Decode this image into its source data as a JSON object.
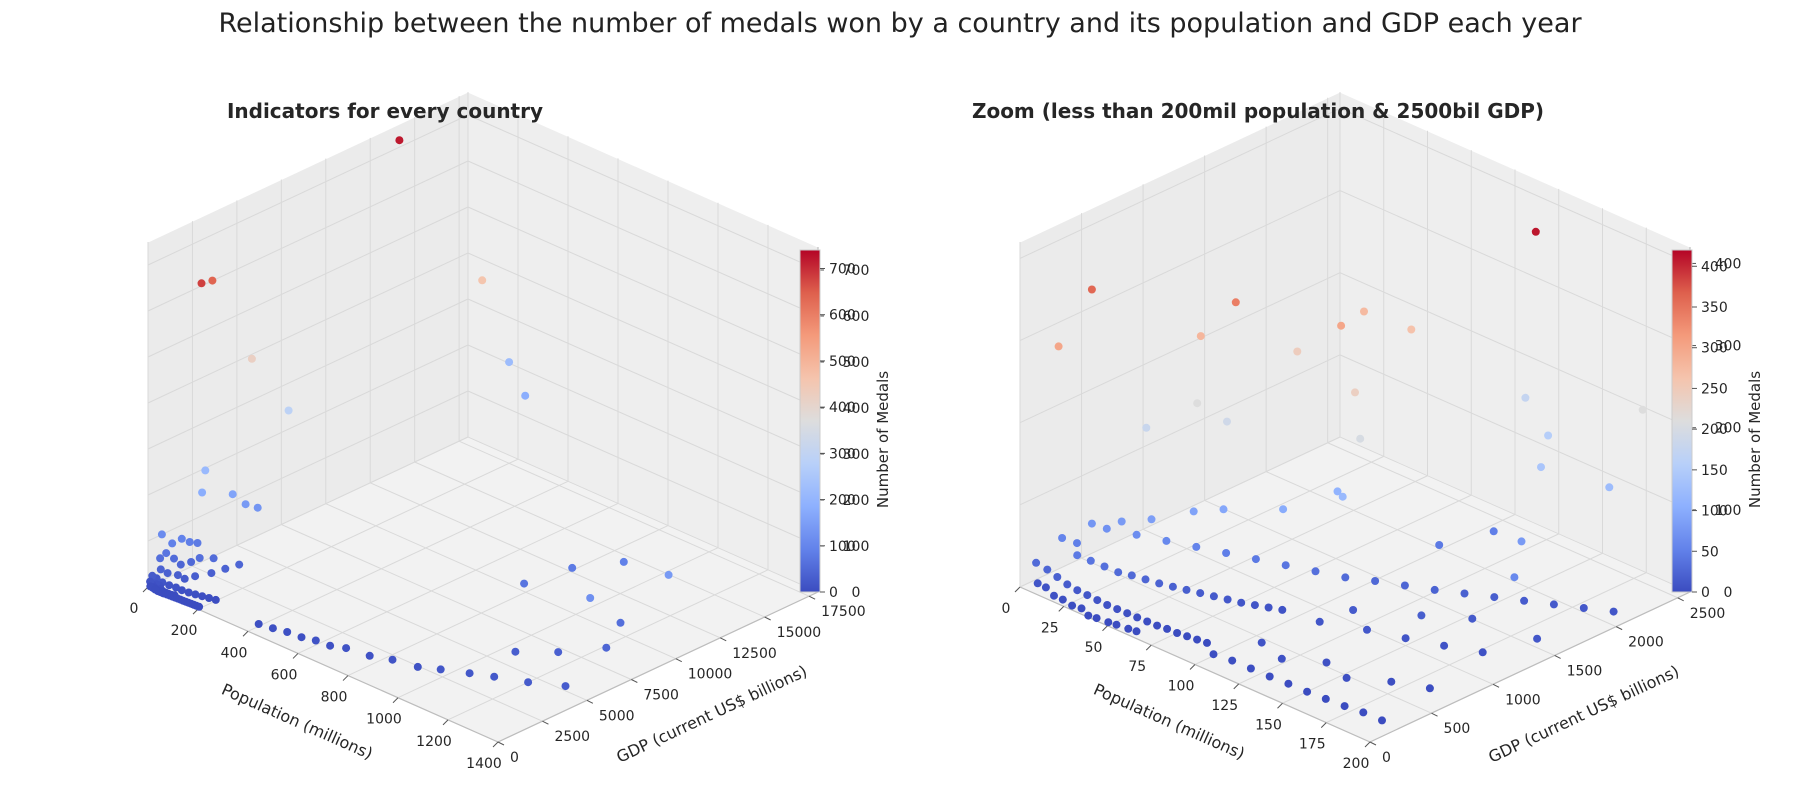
{
  "figure": {
    "suptitle": "Relationship between the number of medals won by a country and its population and GDP each year"
  },
  "chart_data": [
    {
      "type": "scatter",
      "projection": "3d",
      "title": "Indicators for every country",
      "xlabel": "Population (millions)",
      "ylabel": "GDP (current US$ billions)",
      "zlabel": "Number of Medals",
      "xlim": [
        0,
        1400
      ],
      "ylim": [
        0,
        18000
      ],
      "zlim": [
        0,
        750
      ],
      "xticks": [
        0,
        200,
        400,
        600,
        800,
        1000,
        1200,
        1400
      ],
      "yticks": [
        0,
        2500,
        5000,
        7500,
        10000,
        12500,
        15000,
        17500
      ],
      "zticks": [
        0,
        100,
        200,
        300,
        400,
        500,
        600,
        700
      ],
      "grid": true,
      "colormap": "coolwarm",
      "colorbar": {
        "min": 0,
        "max": 740,
        "ticks": [
          0,
          100,
          200,
          300,
          400,
          500,
          600,
          700
        ]
      },
      "points": [
        [
          10,
          14000,
          720
        ],
        [
          150,
          900,
          680
        ],
        [
          80,
          2500,
          640
        ],
        [
          270,
          15000,
          460
        ],
        [
          60,
          5000,
          420
        ],
        [
          100,
          6500,
          290
        ],
        [
          200,
          17500,
          220
        ],
        [
          30,
          2800,
          210
        ],
        [
          60,
          2200,
          180
        ],
        [
          90,
          3500,
          160
        ],
        [
          120,
          3800,
          140
        ],
        [
          140,
          4200,
          130
        ],
        [
          300,
          17000,
          180
        ],
        [
          1300,
          11000,
          140
        ],
        [
          1200,
          8000,
          120
        ],
        [
          20,
          500,
          110
        ],
        [
          40,
          800,
          90
        ],
        [
          50,
          1200,
          95
        ],
        [
          60,
          1500,
          85
        ],
        [
          30,
          600,
          70
        ],
        [
          70,
          1800,
          80
        ],
        [
          20,
          400,
          60
        ],
        [
          40,
          900,
          55
        ],
        [
          60,
          1000,
          45
        ],
        [
          80,
          1300,
          50
        ],
        [
          100,
          1500,
          60
        ],
        [
          120,
          2000,
          55
        ],
        [
          30,
          300,
          40
        ],
        [
          50,
          400,
          35
        ],
        [
          70,
          700,
          30
        ],
        [
          90,
          800,
          25
        ],
        [
          110,
          1100,
          30
        ],
        [
          140,
          1600,
          35
        ],
        [
          160,
          2100,
          40
        ],
        [
          180,
          2600,
          45
        ],
        [
          20,
          200,
          20
        ],
        [
          40,
          250,
          15
        ],
        [
          60,
          350,
          12
        ],
        [
          80,
          450,
          10
        ],
        [
          100,
          500,
          8
        ],
        [
          120,
          600,
          6
        ],
        [
          140,
          700,
          5
        ],
        [
          160,
          800,
          4
        ],
        [
          180,
          900,
          3
        ],
        [
          200,
          1000,
          2
        ],
        [
          10,
          100,
          25
        ],
        [
          15,
          150,
          18
        ],
        [
          25,
          120,
          10
        ],
        [
          35,
          180,
          8
        ],
        [
          45,
          90,
          5
        ],
        [
          55,
          60,
          3
        ],
        [
          65,
          80,
          2
        ],
        [
          75,
          110,
          1
        ],
        [
          85,
          130,
          1
        ],
        [
          95,
          160,
          2
        ],
        [
          5,
          50,
          12
        ],
        [
          12,
          70,
          6
        ],
        [
          22,
          40,
          4
        ],
        [
          32,
          30,
          2
        ],
        [
          42,
          20,
          1
        ],
        [
          52,
          35,
          1
        ],
        [
          62,
          45,
          0
        ],
        [
          72,
          55,
          0
        ],
        [
          82,
          65,
          0
        ],
        [
          92,
          75,
          0
        ],
        [
          102,
          85,
          0
        ],
        [
          112,
          95,
          0
        ],
        [
          122,
          105,
          0
        ],
        [
          132,
          115,
          0
        ],
        [
          142,
          125,
          0
        ],
        [
          152,
          135,
          0
        ],
        [
          162,
          145,
          0
        ],
        [
          172,
          155,
          0
        ],
        [
          182,
          165,
          0
        ],
        [
          192,
          175,
          0
        ],
        [
          8,
          15,
          3
        ],
        [
          18,
          25,
          2
        ],
        [
          28,
          12,
          1
        ],
        [
          38,
          18,
          0
        ],
        [
          48,
          22,
          0
        ],
        [
          58,
          28,
          0
        ],
        [
          400,
          600,
          5
        ],
        [
          450,
          700,
          6
        ],
        [
          500,
          800,
          8
        ],
        [
          550,
          900,
          7
        ],
        [
          600,
          1000,
          10
        ],
        [
          650,
          1100,
          9
        ],
        [
          700,
          1300,
          12
        ],
        [
          780,
          1500,
          11
        ],
        [
          850,
          1800,
          14
        ],
        [
          930,
          2100,
          12
        ],
        [
          1000,
          2400,
          18
        ],
        [
          1080,
          2900,
          20
        ],
        [
          1150,
          3300,
          22
        ],
        [
          1250,
          3800,
          25
        ],
        [
          1350,
          4500,
          28
        ],
        [
          1100,
          5200,
          30
        ],
        [
          1200,
          6200,
          35
        ],
        [
          1300,
          7500,
          45
        ],
        [
          1250,
          9000,
          60
        ],
        [
          900,
          8500,
          70
        ],
        [
          950,
          10500,
          80
        ],
        [
          1050,
          12000,
          90
        ]
      ]
    },
    {
      "type": "scatter",
      "projection": "3d",
      "title": "Zoom (less than 200mil population & 2500bil GDP)",
      "xlabel": "Population (millions)",
      "ylabel": "GDP (current US$ billions)",
      "zlabel": "Number of Medals",
      "xlim": [
        0,
        200
      ],
      "ylim": [
        0,
        2600
      ],
      "zlim": [
        0,
        420
      ],
      "xticks": [
        0,
        25,
        50,
        75,
        100,
        125,
        150,
        175,
        200
      ],
      "yticks": [
        0,
        500,
        1000,
        1500,
        2000,
        2500
      ],
      "zticks": [
        0,
        100,
        200,
        300,
        400
      ],
      "grid": true,
      "colormap": "coolwarm",
      "colorbar": {
        "min": 0,
        "max": 420,
        "ticks": [
          0,
          50,
          100,
          150,
          200,
          250,
          300,
          350,
          400
        ]
      },
      "points": [
        [
          140,
          2200,
          410
        ],
        [
          20,
          300,
          360
        ],
        [
          60,
          900,
          340
        ],
        [
          85,
          1400,
          300
        ],
        [
          15,
          100,
          300
        ],
        [
          70,
          1800,
          275
        ],
        [
          40,
          900,
          280
        ],
        [
          90,
          1900,
          265
        ],
        [
          60,
          1400,
          245
        ],
        [
          100,
          1300,
          240
        ],
        [
          45,
          800,
          210
        ],
        [
          180,
          2500,
          210
        ],
        [
          110,
          1200,
          200
        ],
        [
          30,
          600,
          180
        ],
        [
          55,
          900,
          190
        ],
        [
          120,
          2400,
          175
        ],
        [
          140,
          2300,
          155
        ],
        [
          150,
          2100,
          140
        ],
        [
          175,
          2300,
          125
        ],
        [
          100,
          1200,
          120
        ],
        [
          90,
          1300,
          110
        ],
        [
          80,
          1000,
          100
        ],
        [
          60,
          800,
          95
        ],
        [
          50,
          700,
          90
        ],
        [
          40,
          500,
          85
        ],
        [
          30,
          400,
          80
        ],
        [
          20,
          300,
          75
        ],
        [
          25,
          350,
          70
        ],
        [
          35,
          450,
          65
        ],
        [
          45,
          550,
          60
        ],
        [
          55,
          650,
          55
        ],
        [
          65,
          750,
          50
        ],
        [
          75,
          850,
          45
        ],
        [
          85,
          950,
          40
        ],
        [
          95,
          1050,
          35
        ],
        [
          105,
          1150,
          30
        ],
        [
          115,
          1250,
          28
        ],
        [
          125,
          1350,
          25
        ],
        [
          135,
          1450,
          22
        ],
        [
          145,
          1550,
          20
        ],
        [
          155,
          1650,
          18
        ],
        [
          165,
          1750,
          16
        ],
        [
          175,
          1850,
          14
        ],
        [
          185,
          1950,
          12
        ],
        [
          195,
          2050,
          10
        ],
        [
          160,
          1800,
          80
        ],
        [
          170,
          1600,
          60
        ],
        [
          130,
          2000,
          50
        ],
        [
          120,
          1700,
          45
        ],
        [
          10,
          200,
          55
        ],
        [
          15,
          250,
          50
        ],
        [
          20,
          180,
          45
        ],
        [
          25,
          220,
          40
        ],
        [
          30,
          260,
          35
        ],
        [
          35,
          300,
          30
        ],
        [
          40,
          340,
          28
        ],
        [
          45,
          380,
          25
        ],
        [
          50,
          420,
          22
        ],
        [
          55,
          460,
          20
        ],
        [
          60,
          500,
          18
        ],
        [
          65,
          540,
          16
        ],
        [
          70,
          580,
          14
        ],
        [
          75,
          620,
          12
        ],
        [
          80,
          660,
          10
        ],
        [
          85,
          700,
          9
        ],
        [
          90,
          740,
          8
        ],
        [
          95,
          780,
          7
        ],
        [
          5,
          60,
          30
        ],
        [
          10,
          80,
          25
        ],
        [
          15,
          90,
          20
        ],
        [
          20,
          100,
          15
        ],
        [
          25,
          110,
          12
        ],
        [
          30,
          120,
          10
        ],
        [
          35,
          130,
          8
        ],
        [
          40,
          140,
          6
        ],
        [
          45,
          150,
          5
        ],
        [
          50,
          160,
          4
        ],
        [
          55,
          170,
          3
        ],
        [
          60,
          180,
          2
        ],
        [
          65,
          190,
          1
        ],
        [
          70,
          200,
          1
        ],
        [
          75,
          210,
          0
        ],
        [
          80,
          220,
          0
        ],
        [
          85,
          230,
          0
        ],
        [
          90,
          240,
          0
        ],
        [
          100,
          150,
          2
        ],
        [
          110,
          160,
          3
        ],
        [
          120,
          170,
          2
        ],
        [
          130,
          180,
          1
        ],
        [
          140,
          190,
          1
        ],
        [
          150,
          200,
          0
        ],
        [
          160,
          210,
          0
        ],
        [
          170,
          220,
          0
        ],
        [
          180,
          230,
          1
        ],
        [
          190,
          240,
          0
        ],
        [
          110,
          400,
          8
        ],
        [
          125,
          350,
          6
        ],
        [
          140,
          500,
          5
        ],
        [
          155,
          450,
          4
        ],
        [
          170,
          600,
          3
        ],
        [
          185,
          700,
          2
        ],
        [
          115,
          800,
          10
        ],
        [
          135,
          900,
          12
        ],
        [
          150,
          1000,
          9
        ],
        [
          165,
          1100,
          7
        ],
        [
          180,
          1200,
          6
        ],
        [
          120,
          1000,
          15
        ],
        [
          145,
          1200,
          18
        ],
        [
          160,
          1400,
          14
        ],
        [
          190,
          1500,
          11
        ],
        [
          8,
          30,
          10
        ],
        [
          12,
          40,
          8
        ],
        [
          18,
          20,
          5
        ],
        [
          22,
          35,
          3
        ],
        [
          28,
          25,
          2
        ],
        [
          32,
          45,
          1
        ],
        [
          38,
          15,
          0
        ],
        [
          42,
          25,
          0
        ],
        [
          48,
          35,
          0
        ],
        [
          52,
          45,
          0
        ],
        [
          58,
          55,
          0
        ],
        [
          62,
          65,
          0
        ]
      ]
    }
  ]
}
